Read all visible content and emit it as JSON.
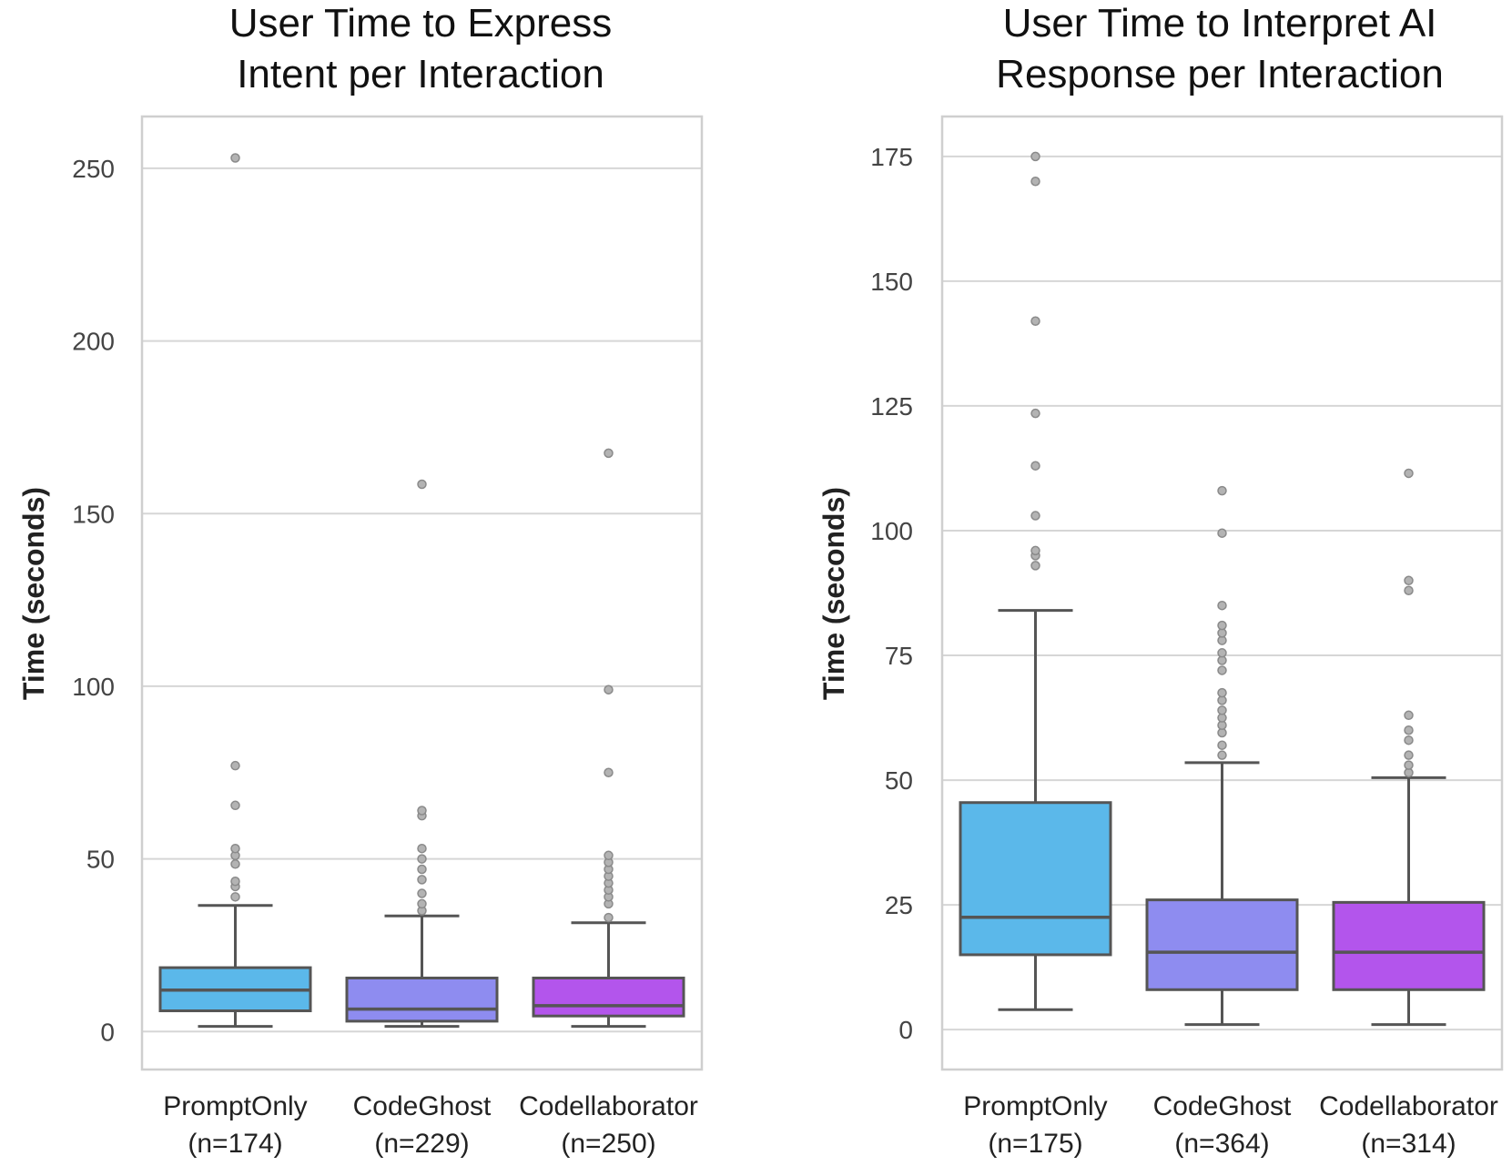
{
  "chart_data": [
    {
      "type": "box",
      "title": [
        "User Time to Express",
        "Intent per Interaction"
      ],
      "xlabel": "",
      "ylabel": "Time (seconds)",
      "ylim": [
        -11,
        265
      ],
      "yticks": [
        0,
        50,
        100,
        150,
        200,
        250
      ],
      "grid": true,
      "categories": [
        {
          "name": "PromptOnly",
          "n": "(n=174)"
        },
        {
          "name": "CodeGhost",
          "n": "(n=229)"
        },
        {
          "name": "Codellaborator",
          "n": "(n=250)"
        }
      ],
      "boxes": [
        {
          "color": "#5bb8ea",
          "whisker_low": 1.5,
          "q1": 6,
          "median": 12,
          "q3": 18.5,
          "whisker_high": 36.5,
          "outliers": [
            39,
            42,
            43.5,
            48.5,
            51,
            53,
            65.5,
            77,
            253
          ]
        },
        {
          "color": "#8e8cf0",
          "whisker_low": 1.5,
          "q1": 3,
          "median": 6.5,
          "q3": 15.5,
          "whisker_high": 33.5,
          "outliers": [
            35,
            37,
            40,
            44,
            47,
            50,
            53,
            62.5,
            64,
            158.5
          ]
        },
        {
          "color": "#b355ec",
          "whisker_low": 1.5,
          "q1": 4.5,
          "median": 7.5,
          "q3": 15.5,
          "whisker_high": 31.5,
          "outliers": [
            33,
            37,
            39,
            41,
            43,
            45,
            47,
            49,
            51,
            75,
            99,
            167.5
          ]
        }
      ]
    },
    {
      "type": "box",
      "title": [
        "User Time to Interpret AI",
        "Response per Interaction"
      ],
      "xlabel": "",
      "ylabel": "Time (seconds)",
      "ylim": [
        -8,
        183
      ],
      "yticks": [
        0,
        25,
        50,
        75,
        100,
        125,
        150,
        175
      ],
      "grid": true,
      "categories": [
        {
          "name": "PromptOnly",
          "n": "(n=175)"
        },
        {
          "name": "CodeGhost",
          "n": "(n=364)"
        },
        {
          "name": "Codellaborator",
          "n": "(n=314)"
        }
      ],
      "boxes": [
        {
          "color": "#5bb8ea",
          "whisker_low": 4,
          "q1": 15,
          "median": 22.5,
          "q3": 45.5,
          "whisker_high": 84,
          "outliers": [
            93,
            95,
            96,
            103,
            113,
            123.5,
            142,
            170,
            175
          ]
        },
        {
          "color": "#8e8cf0",
          "whisker_low": 1,
          "q1": 8,
          "median": 15.5,
          "q3": 26,
          "whisker_high": 53.5,
          "outliers": [
            55,
            57,
            59.5,
            61,
            62.5,
            64,
            66,
            67.5,
            72,
            74,
            75.5,
            78,
            79.5,
            81,
            85,
            99.5,
            108
          ]
        },
        {
          "color": "#b355ec",
          "whisker_low": 1,
          "q1": 8,
          "median": 15.5,
          "q3": 25.5,
          "whisker_high": 50.5,
          "outliers": [
            51.5,
            53,
            55,
            58,
            60,
            63,
            88,
            90,
            111.5
          ]
        }
      ]
    }
  ]
}
